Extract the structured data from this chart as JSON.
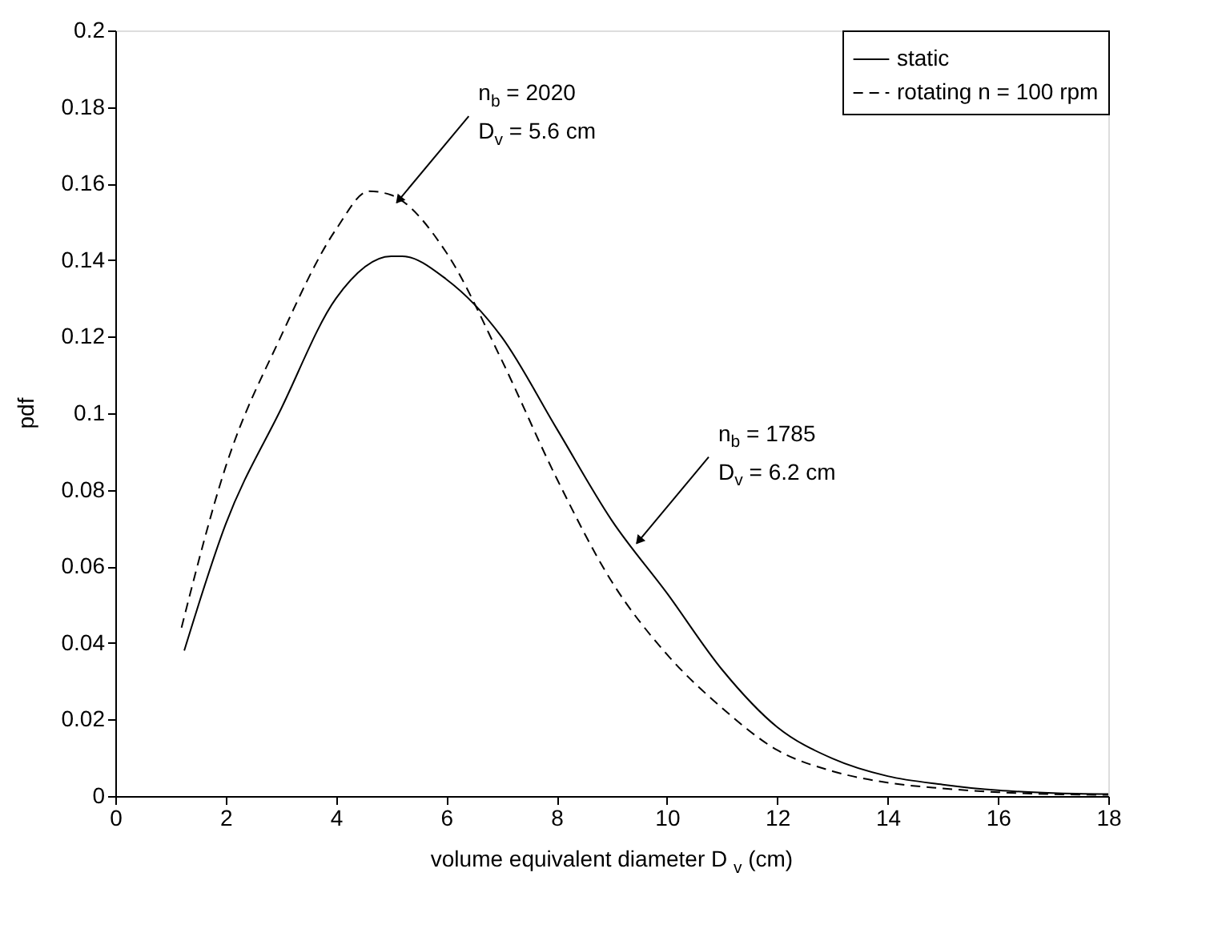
{
  "chart_data": {
    "type": "line",
    "xlabel": "volume equivalent  diameter D$_{v}$ (cm)",
    "ylabel": "pdf",
    "xlim": [
      0,
      18
    ],
    "xticks": [
      0,
      2,
      4,
      6,
      8,
      10,
      12,
      14,
      16,
      18
    ],
    "ylim": [
      0,
      0.2
    ],
    "yticks": [
      0,
      0.02,
      0.04,
      0.06,
      0.08,
      0.1,
      0.12,
      0.14,
      0.16,
      0.18,
      0.2
    ],
    "grid": false,
    "legend": "top right",
    "marker": "none",
    "series": [
      {
        "name": "static",
        "color": "#000000",
        "line_style": "solid",
        "x": [
          1.25,
          2,
          3,
          4,
          5,
          5.2,
          6,
          7,
          8,
          9,
          10,
          11,
          12,
          13,
          14,
          15,
          16,
          17,
          18
        ],
        "values": [
          0.038,
          0.071,
          0.101,
          0.13,
          0.141,
          0.141,
          0.135,
          0.12,
          0.096,
          0.072,
          0.053,
          0.033,
          0.018,
          0.0098,
          0.0052,
          0.003,
          0.0015,
          0.0008,
          0.0005
        ]
      },
      {
        "name": "rotating n = 100 rpm",
        "color": "#000000",
        "line_style": "dashed",
        "x": [
          1.2,
          2,
          3,
          4,
          4.6,
          5,
          6,
          7,
          8,
          9,
          10,
          11,
          12,
          13,
          14,
          15,
          16,
          17,
          18
        ],
        "values": [
          0.044,
          0.086,
          0.12,
          0.148,
          0.158,
          0.157,
          0.142,
          0.114,
          0.083,
          0.056,
          0.037,
          0.023,
          0.012,
          0.0065,
          0.0035,
          0.002,
          0.001,
          0.0005,
          0.0003
        ]
      }
    ],
    "annotations": [
      {
        "text": "n$_{b}$ = 2020\nD$_{v}$ = 5.6 cm",
        "x": 5.1,
        "y": 0.155
      },
      {
        "text": "n$_{b}$ = 1785\nD$_{v}$ = 6.2 cm",
        "x": 9.45,
        "y": 0.066
      }
    ]
  }
}
